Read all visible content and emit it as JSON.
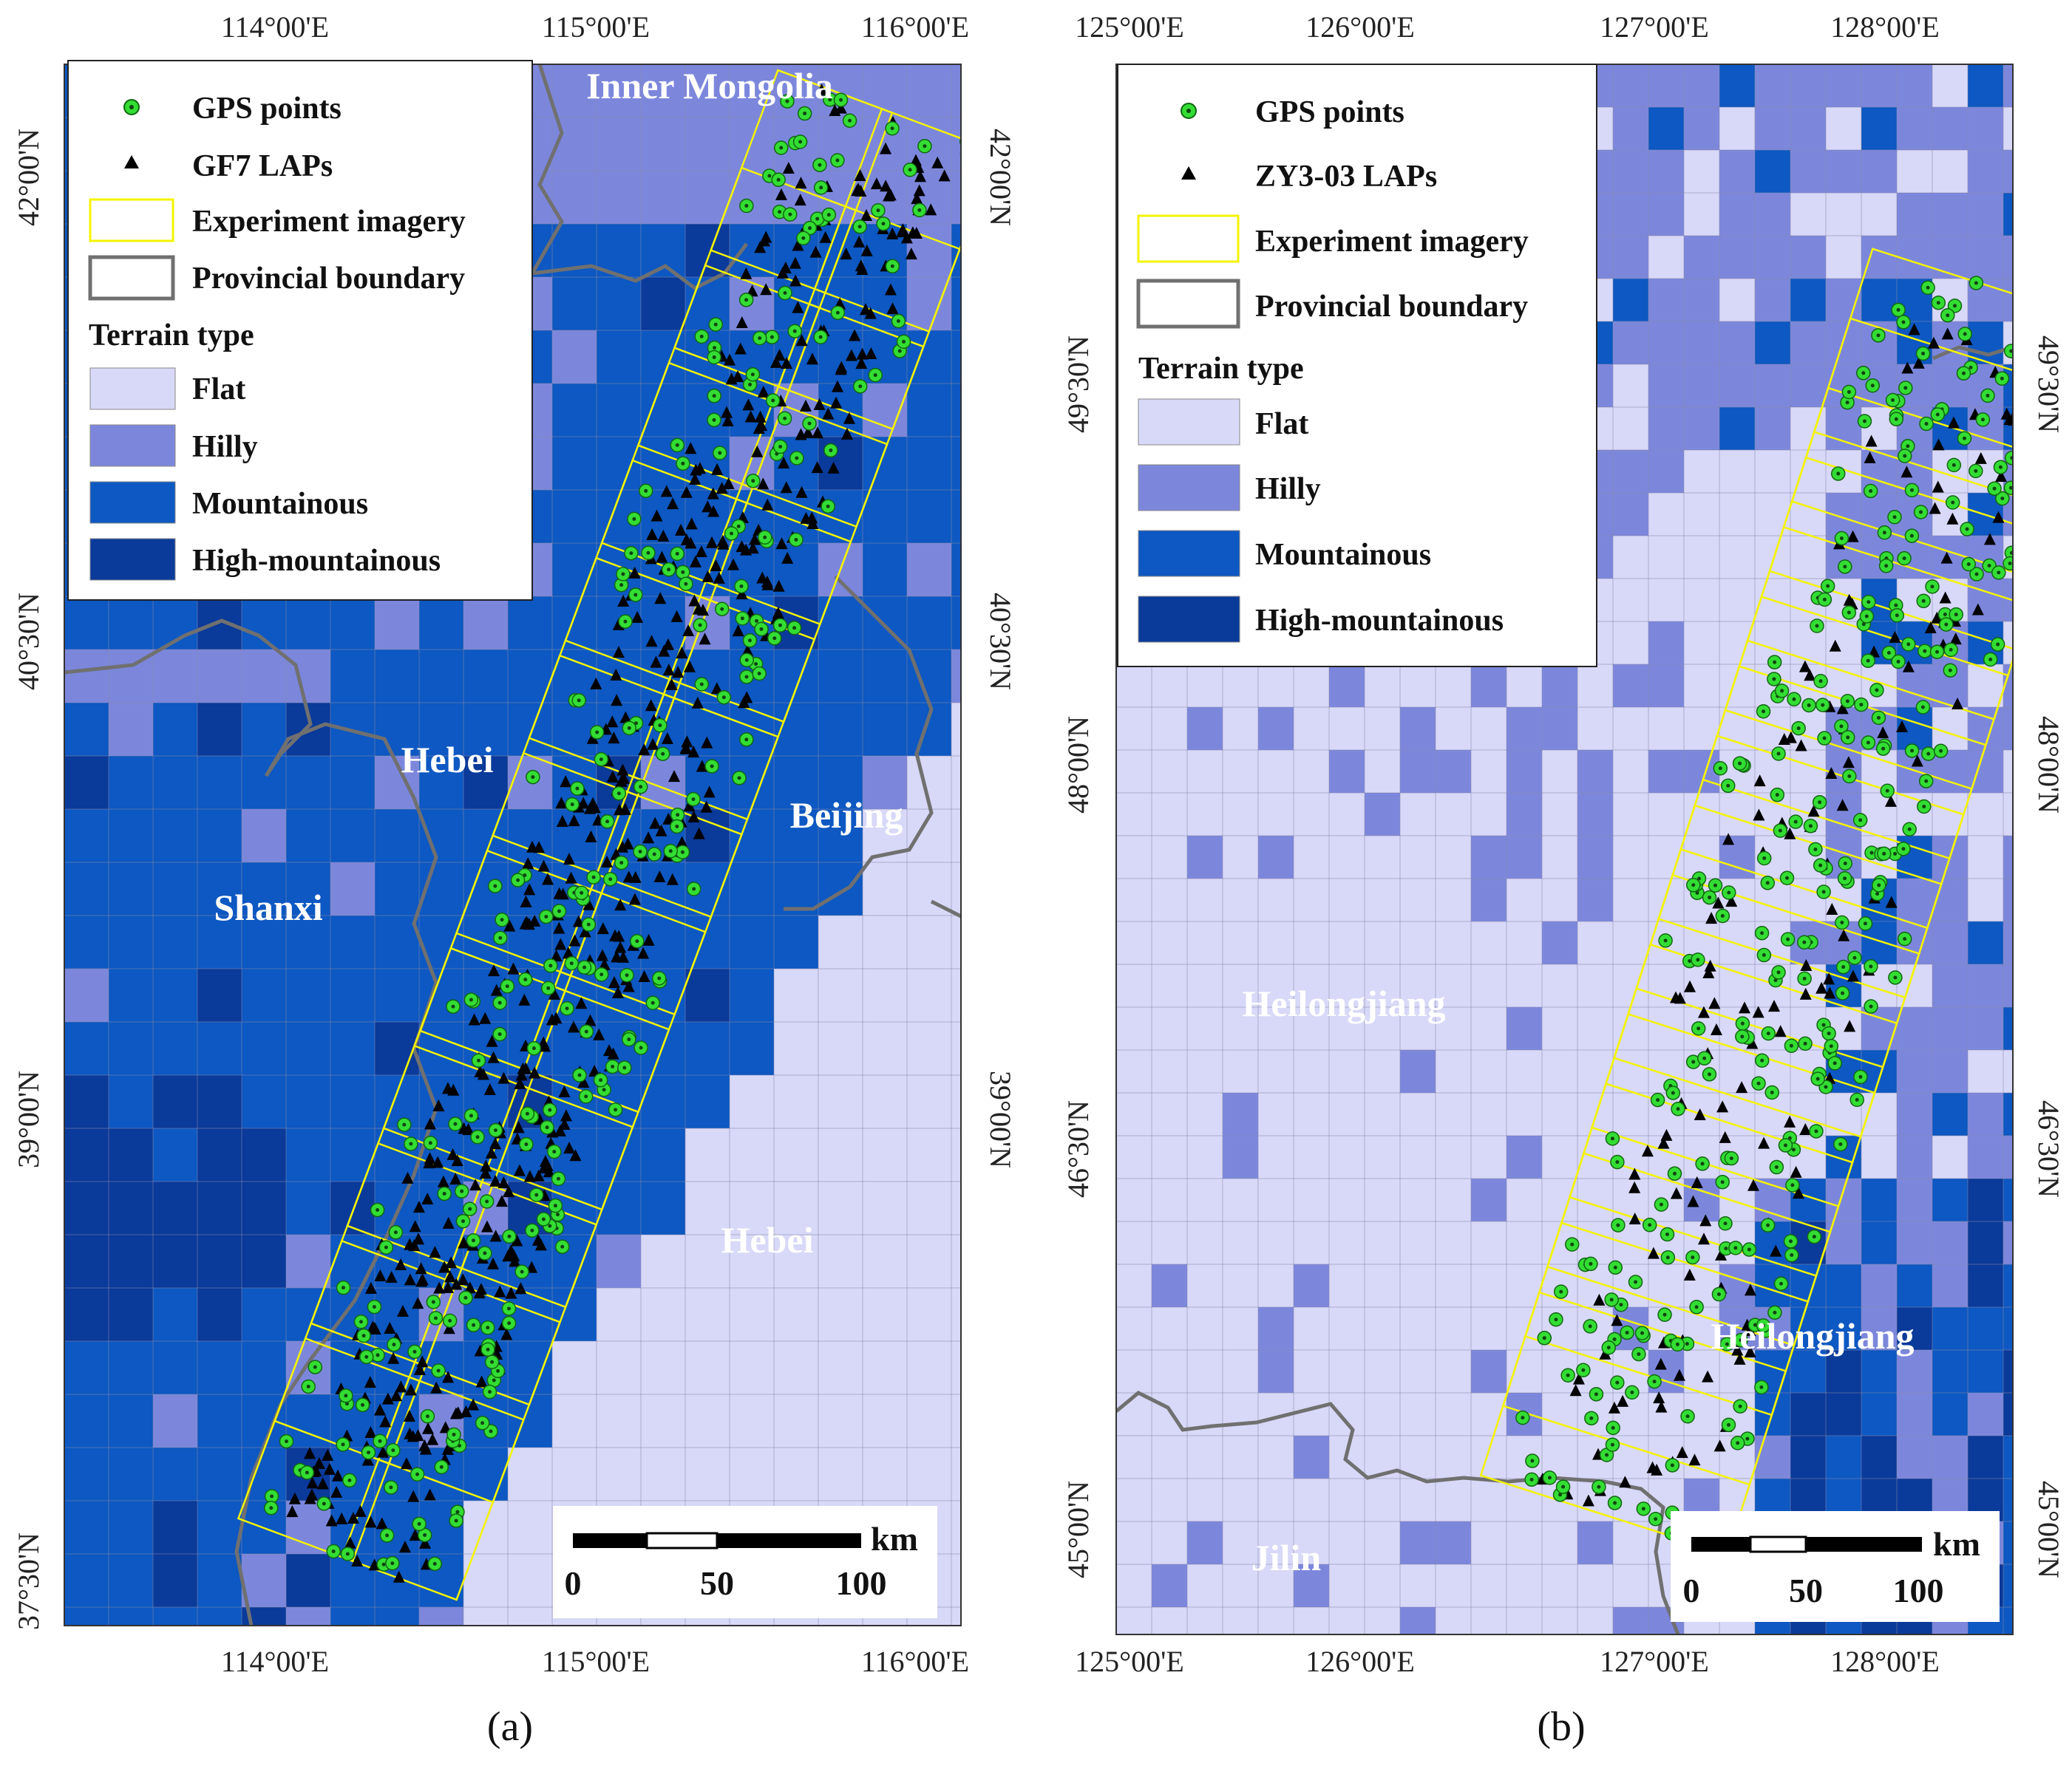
{
  "colors": {
    "flat": "#d8d8f8",
    "hilly": "#7c87dc",
    "mountainous": "#0d58c2",
    "high_mountainous": "#0a3a9a",
    "grid": "#8888aa",
    "boundary": "#707070",
    "imagery": "#f4f400",
    "gps": "#33dd33",
    "lap": "#000000"
  },
  "panels": [
    {
      "caption": "(a)",
      "top_ticks": [
        "114°00'E",
        "115°00'E",
        "116°00'E"
      ],
      "bottom_ticks": [
        "114°00'E",
        "115°00'E",
        "116°00'E"
      ],
      "left_ticks": [
        "42°00'N",
        "40°30'N",
        "39°00'N",
        "37°30'N"
      ],
      "right_ticks": [
        "42°00'N",
        "40°30'N",
        "39°00'N"
      ],
      "places": [
        "Inner Mongolia",
        "Hebei",
        "Beijing",
        "Shanxi",
        "Hebei"
      ],
      "legend": {
        "gps": "GPS points",
        "laps": "GF7 LAPs",
        "imagery": "Experiment imagery",
        "boundary": "Provincial boundary",
        "terrain_title": "Terrain type",
        "terrain": [
          "Flat",
          "Hilly",
          "Mountainous",
          "High-mountainous"
        ]
      },
      "scale": {
        "unit": "km",
        "labels": [
          "0",
          "50",
          "100"
        ]
      }
    },
    {
      "caption": "(b)",
      "top_ticks": [
        "125°00'E",
        "126°00'E",
        "127°00'E",
        "128°00'E"
      ],
      "bottom_ticks": [
        "125°00'E",
        "126°00'E",
        "127°00'E",
        "128°00'E"
      ],
      "left_ticks": [
        "49°30'N",
        "48°00'N",
        "46°30'N",
        "45°00'N"
      ],
      "right_ticks": [
        "49°30'N",
        "48°00'N",
        "46°30'N",
        "45°00'N"
      ],
      "places": [
        "Heilongjiang",
        "Heilongjiang",
        "Jilin"
      ],
      "legend": {
        "gps": "GPS points",
        "laps": "ZY3-03 LAPs",
        "imagery": "Experiment imagery",
        "boundary": "Provincial boundary",
        "terrain_title": "Terrain type",
        "terrain": [
          "Flat",
          "Hilly",
          "Mountainous",
          "High-mountainous"
        ]
      },
      "scale": {
        "unit": "km",
        "labels": [
          "0",
          "50",
          "100"
        ]
      }
    }
  ]
}
